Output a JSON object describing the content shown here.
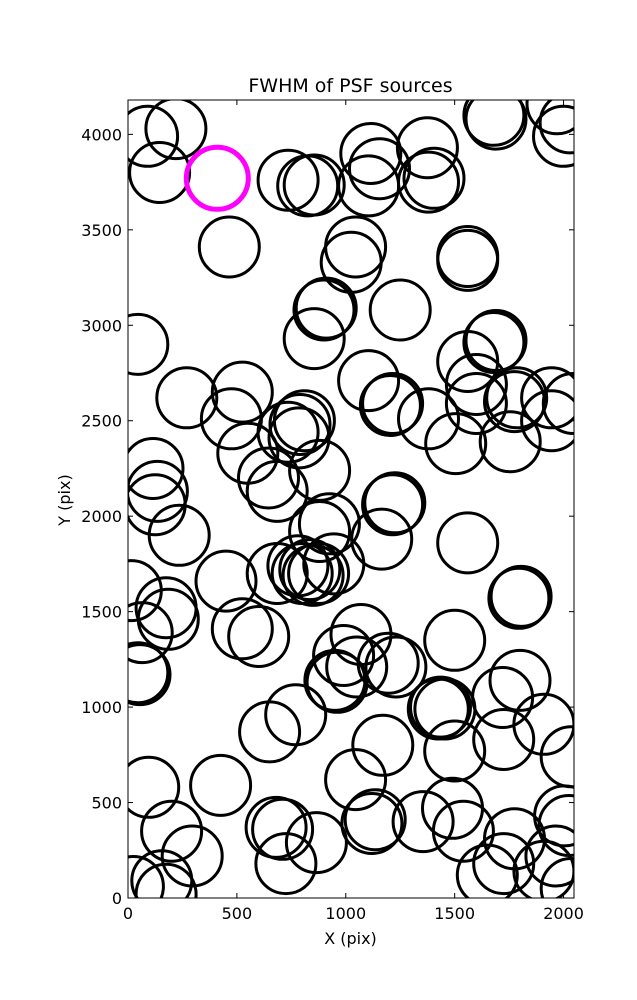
{
  "chart_data": {
    "type": "scatter",
    "title": "FWHM of PSF sources",
    "xlabel": "X (pix)",
    "ylabel": "Y (pix)",
    "xlim": [
      0,
      2048
    ],
    "ylim": [
      0,
      4180
    ],
    "xticks": [
      0,
      500,
      1000,
      1500,
      2000
    ],
    "yticks": [
      0,
      500,
      1000,
      1500,
      2000,
      2500,
      3000,
      3500,
      4000
    ],
    "grid": false,
    "marker": "open-circle",
    "series": [
      {
        "color": "#000000",
        "points": [
          [
            90,
            3990
          ],
          [
            220,
            4030
          ],
          [
            145,
            3800
          ],
          [
            465,
            3410
          ],
          [
            735,
            3760
          ],
          [
            825,
            3730
          ],
          [
            855,
            3735
          ],
          [
            1105,
            3730
          ],
          [
            1115,
            3900
          ],
          [
            1155,
            3820
          ],
          [
            1375,
            3930
          ],
          [
            1380,
            3750
          ],
          [
            1405,
            3770
          ],
          [
            1680,
            4100
          ],
          [
            1690,
            4080
          ],
          [
            1970,
            4160
          ],
          [
            2000,
            3990
          ],
          [
            2030,
            4060
          ],
          [
            1025,
            3330
          ],
          [
            1045,
            3410
          ],
          [
            1560,
            3360
          ],
          [
            1560,
            3340
          ],
          [
            900,
            3080
          ],
          [
            910,
            3090
          ],
          [
            1250,
            3080
          ],
          [
            45,
            2900
          ],
          [
            855,
            2930
          ],
          [
            1680,
            2910
          ],
          [
            1690,
            2920
          ],
          [
            1560,
            2810
          ],
          [
            1600,
            2690
          ],
          [
            1600,
            2590
          ],
          [
            270,
            2620
          ],
          [
            525,
            2650
          ],
          [
            475,
            2510
          ],
          [
            1105,
            2710
          ],
          [
            1205,
            2580
          ],
          [
            1215,
            2590
          ],
          [
            1380,
            2510
          ],
          [
            1505,
            2380
          ],
          [
            1775,
            2600
          ],
          [
            1785,
            2620
          ],
          [
            1755,
            2390
          ],
          [
            1945,
            2620
          ],
          [
            1945,
            2500
          ],
          [
            2045,
            2590
          ],
          [
            735,
            2440
          ],
          [
            785,
            2410
          ],
          [
            810,
            2500
          ],
          [
            790,
            2480
          ],
          [
            550,
            2330
          ],
          [
            645,
            2200
          ],
          [
            685,
            2130
          ],
          [
            880,
            2240
          ],
          [
            115,
            2250
          ],
          [
            135,
            2130
          ],
          [
            125,
            2060
          ],
          [
            235,
            1900
          ],
          [
            1215,
            2060
          ],
          [
            1225,
            2070
          ],
          [
            1165,
            1880
          ],
          [
            1560,
            1860
          ],
          [
            925,
            1960
          ],
          [
            880,
            1920
          ],
          [
            685,
            1700
          ],
          [
            780,
            1740
          ],
          [
            800,
            1700
          ],
          [
            835,
            1720
          ],
          [
            850,
            1690
          ],
          [
            875,
            1700
          ],
          [
            945,
            1750
          ],
          [
            450,
            1660
          ],
          [
            15,
            1610
          ],
          [
            65,
            1390
          ],
          [
            175,
            1520
          ],
          [
            185,
            1460
          ],
          [
            525,
            1410
          ],
          [
            600,
            1370
          ],
          [
            1795,
            1570
          ],
          [
            1805,
            1580
          ],
          [
            1500,
            1350
          ],
          [
            1070,
            1380
          ],
          [
            990,
            1270
          ],
          [
            1050,
            1210
          ],
          [
            1195,
            1230
          ],
          [
            1230,
            1210
          ],
          [
            45,
            1180
          ],
          [
            55,
            1170
          ],
          [
            950,
            1140
          ],
          [
            960,
            1130
          ],
          [
            1800,
            1140
          ],
          [
            1720,
            1050
          ],
          [
            1425,
            990
          ],
          [
            1435,
            1000
          ],
          [
            1455,
            990
          ],
          [
            770,
            960
          ],
          [
            650,
            870
          ],
          [
            1910,
            910
          ],
          [
            1725,
            830
          ],
          [
            2035,
            740
          ],
          [
            1170,
            800
          ],
          [
            1500,
            770
          ],
          [
            95,
            580
          ],
          [
            425,
            590
          ],
          [
            1045,
            620
          ],
          [
            200,
            350
          ],
          [
            295,
            220
          ],
          [
            680,
            370
          ],
          [
            710,
            360
          ],
          [
            725,
            180
          ],
          [
            865,
            290
          ],
          [
            1120,
            390
          ],
          [
            1135,
            410
          ],
          [
            1355,
            400
          ],
          [
            1490,
            470
          ],
          [
            1540,
            350
          ],
          [
            1650,
            120
          ],
          [
            1725,
            180
          ],
          [
            1775,
            310
          ],
          [
            1910,
            140
          ],
          [
            1965,
            220
          ],
          [
            2005,
            430
          ],
          [
            2025,
            380
          ],
          [
            2035,
            50
          ],
          [
            25,
            60
          ],
          [
            155,
            90
          ],
          [
            175,
            20
          ]
        ]
      },
      {
        "color": "#ff00ff",
        "points": [
          [
            410,
            3770
          ]
        ]
      }
    ]
  }
}
